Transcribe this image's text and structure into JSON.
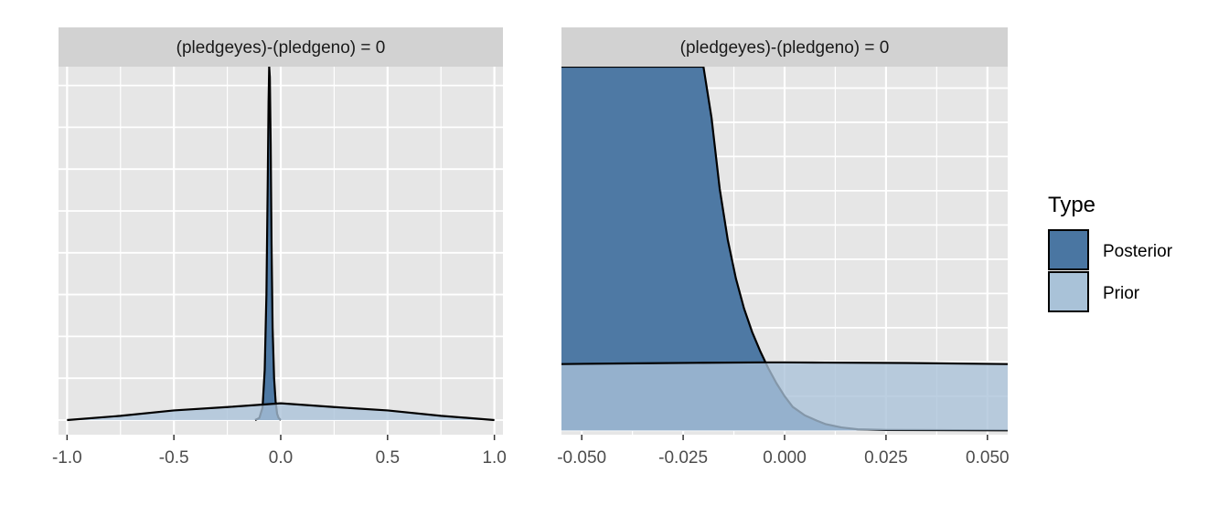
{
  "colors": {
    "posterior": "#4a76a2",
    "prior": "#a9c2d8",
    "panel_bg": "#e6e6e6",
    "strip_bg": "#d2d2d2",
    "grid": "#ffffff",
    "outline": "#000000"
  },
  "legend": {
    "title": "Type",
    "items": [
      {
        "key": "posterior",
        "label": "Posterior"
      },
      {
        "key": "prior",
        "label": "Prior"
      }
    ]
  },
  "chart_data": [
    {
      "type": "area",
      "strip_label": "(pledgeyes)-(pledgeno) = 0",
      "xlim": [
        -1.04,
        1.04
      ],
      "ylim": [
        -0.35,
        8.45
      ],
      "x_ticks": [
        -1.0,
        -0.5,
        0.0,
        0.5,
        1.0
      ],
      "x_tick_labels": [
        "-1.0",
        "-0.5",
        "0.0",
        "0.5",
        "1.0"
      ],
      "grid_y": [
        0,
        1,
        2,
        3,
        4,
        5,
        6,
        7,
        8
      ],
      "series": [
        {
          "name": "Prior",
          "key": "prior",
          "x": [
            -1.0,
            -0.75,
            -0.5,
            -0.25,
            0.0,
            0.25,
            0.5,
            0.75,
            1.0
          ],
          "y": [
            0.0,
            0.1,
            0.23,
            0.31,
            0.4,
            0.31,
            0.23,
            0.1,
            0.0
          ]
        },
        {
          "name": "Posterior",
          "key": "posterior",
          "x": [
            -0.12,
            -0.1,
            -0.085,
            -0.075,
            -0.067,
            -0.061,
            -0.057,
            -0.054,
            -0.051,
            -0.047,
            -0.043,
            -0.038,
            -0.031,
            -0.024,
            -0.017,
            -0.01,
            0.0
          ],
          "y": [
            0.0,
            0.05,
            0.3,
            1.2,
            3.0,
            5.6,
            7.6,
            8.45,
            8.2,
            6.6,
            4.2,
            2.2,
            1.0,
            0.45,
            0.15,
            0.05,
            0.0
          ]
        }
      ]
    },
    {
      "type": "area",
      "strip_label": "(pledgeyes)-(pledgeno) = 0",
      "xlim": [
        -0.055,
        0.055
      ],
      "ylim": [
        -0.02,
        1.7
      ],
      "x_ticks": [
        -0.05,
        -0.025,
        0.0,
        0.025,
        0.05
      ],
      "x_tick_labels": [
        "-0.050",
        "-0.025",
        "0.000",
        "0.025",
        "0.050"
      ],
      "grid_y": [
        0,
        0.16,
        0.32,
        0.48,
        0.64,
        0.8,
        0.96,
        1.12,
        1.28,
        1.44,
        1.6
      ],
      "series": [
        {
          "name": "Prior",
          "key": "prior",
          "x": [
            -0.055,
            -0.04,
            -0.02,
            -0.005,
            0.0,
            0.01,
            0.03,
            0.055
          ],
          "y": [
            0.31,
            0.313,
            0.316,
            0.318,
            0.318,
            0.317,
            0.315,
            0.31
          ]
        },
        {
          "name": "Posterior",
          "key": "posterior",
          "x": [
            -0.055,
            -0.025,
            -0.02,
            -0.018,
            -0.016,
            -0.014,
            -0.012,
            -0.01,
            -0.008,
            -0.006,
            -0.004,
            -0.002,
            0.0,
            0.002,
            0.005,
            0.008,
            0.01,
            0.014,
            0.018,
            0.025,
            0.055
          ],
          "y": [
            1.7,
            1.7,
            1.7,
            1.46,
            1.13,
            0.89,
            0.71,
            0.57,
            0.46,
            0.37,
            0.29,
            0.22,
            0.16,
            0.11,
            0.07,
            0.045,
            0.03,
            0.014,
            0.005,
            0.002,
            0.0
          ]
        }
      ]
    }
  ]
}
